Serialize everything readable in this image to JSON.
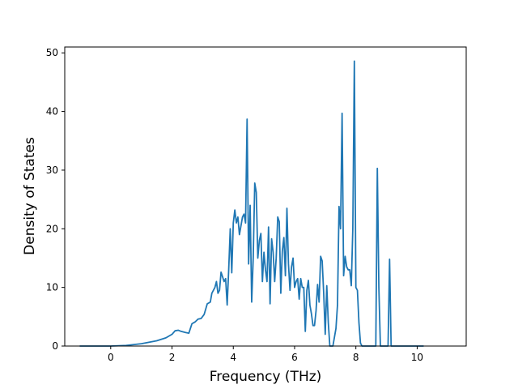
{
  "chart_data": {
    "type": "line",
    "title": "",
    "xlabel": "Frequency (THz)",
    "ylabel": "Density of States",
    "xlim": [
      -1.5,
      11.6
    ],
    "ylim": [
      0,
      51
    ],
    "x_ticks": [
      0,
      2,
      4,
      6,
      8,
      10
    ],
    "y_ticks": [
      0,
      10,
      20,
      30,
      40,
      50
    ],
    "grid": false,
    "series": [
      {
        "color": "#1f77b4",
        "points": [
          [
            -1.0,
            0.0
          ],
          [
            0.0,
            0.0
          ],
          [
            0.5,
            0.1
          ],
          [
            1.0,
            0.4
          ],
          [
            1.5,
            0.9
          ],
          [
            1.8,
            1.4
          ],
          [
            2.0,
            2.0
          ],
          [
            2.1,
            2.6
          ],
          [
            2.2,
            2.7
          ],
          [
            2.3,
            2.5
          ],
          [
            2.45,
            2.3
          ],
          [
            2.55,
            2.2
          ],
          [
            2.65,
            3.8
          ],
          [
            2.75,
            4.1
          ],
          [
            2.85,
            4.6
          ],
          [
            2.95,
            4.7
          ],
          [
            3.05,
            5.4
          ],
          [
            3.15,
            7.2
          ],
          [
            3.25,
            7.5
          ],
          [
            3.3,
            9.0
          ],
          [
            3.4,
            10.0
          ],
          [
            3.45,
            11.0
          ],
          [
            3.5,
            9.0
          ],
          [
            3.55,
            9.5
          ],
          [
            3.6,
            12.6
          ],
          [
            3.7,
            11.0
          ],
          [
            3.75,
            11.5
          ],
          [
            3.8,
            7.0
          ],
          [
            3.85,
            13.0
          ],
          [
            3.9,
            20.0
          ],
          [
            3.95,
            12.5
          ],
          [
            4.0,
            21.0
          ],
          [
            4.05,
            23.2
          ],
          [
            4.1,
            21.0
          ],
          [
            4.15,
            22.0
          ],
          [
            4.2,
            19.0
          ],
          [
            4.3,
            22.0
          ],
          [
            4.35,
            22.5
          ],
          [
            4.4,
            21.0
          ],
          [
            4.45,
            38.7
          ],
          [
            4.5,
            14.0
          ],
          [
            4.55,
            24.0
          ],
          [
            4.6,
            7.5
          ],
          [
            4.65,
            15.0
          ],
          [
            4.7,
            27.8
          ],
          [
            4.75,
            26.2
          ],
          [
            4.8,
            15.0
          ],
          [
            4.85,
            18.0
          ],
          [
            4.9,
            19.2
          ],
          [
            4.95,
            11.0
          ],
          [
            5.0,
            16.0
          ],
          [
            5.05,
            13.0
          ],
          [
            5.1,
            11.0
          ],
          [
            5.15,
            20.3
          ],
          [
            5.2,
            7.2
          ],
          [
            5.25,
            18.3
          ],
          [
            5.3,
            16.0
          ],
          [
            5.35,
            11.0
          ],
          [
            5.4,
            15.0
          ],
          [
            5.45,
            22.0
          ],
          [
            5.5,
            21.2
          ],
          [
            5.55,
            9.0
          ],
          [
            5.6,
            16.2
          ],
          [
            5.65,
            18.5
          ],
          [
            5.7,
            12.0
          ],
          [
            5.75,
            23.5
          ],
          [
            5.8,
            14.0
          ],
          [
            5.85,
            9.5
          ],
          [
            5.9,
            13.5
          ],
          [
            5.95,
            15.0
          ],
          [
            6.0,
            10.0
          ],
          [
            6.05,
            11.0
          ],
          [
            6.1,
            11.5
          ],
          [
            6.15,
            8.0
          ],
          [
            6.2,
            11.5
          ],
          [
            6.25,
            10.0
          ],
          [
            6.3,
            10.0
          ],
          [
            6.35,
            2.5
          ],
          [
            6.4,
            9.5
          ],
          [
            6.45,
            11.2
          ],
          [
            6.5,
            7.0
          ],
          [
            6.55,
            5.5
          ],
          [
            6.6,
            3.5
          ],
          [
            6.65,
            3.5
          ],
          [
            6.7,
            6.0
          ],
          [
            6.75,
            10.5
          ],
          [
            6.8,
            7.5
          ],
          [
            6.85,
            15.3
          ],
          [
            6.9,
            14.5
          ],
          [
            6.95,
            9.0
          ],
          [
            7.0,
            2.0
          ],
          [
            7.05,
            10.3
          ],
          [
            7.1,
            4.0
          ],
          [
            7.15,
            0.0
          ],
          [
            7.25,
            0.0
          ],
          [
            7.35,
            3.0
          ],
          [
            7.4,
            7.0
          ],
          [
            7.45,
            23.8
          ],
          [
            7.5,
            20.0
          ],
          [
            7.55,
            39.7
          ],
          [
            7.6,
            12.0
          ],
          [
            7.65,
            15.3
          ],
          [
            7.7,
            13.5
          ],
          [
            7.75,
            13.0
          ],
          [
            7.8,
            13.0
          ],
          [
            7.85,
            10.3
          ],
          [
            7.9,
            20.0
          ],
          [
            7.95,
            48.6
          ],
          [
            8.0,
            10.0
          ],
          [
            8.05,
            9.5
          ],
          [
            8.1,
            4.0
          ],
          [
            8.15,
            0.5
          ],
          [
            8.2,
            0.0
          ],
          [
            8.5,
            0.0
          ],
          [
            8.65,
            0.0
          ],
          [
            8.7,
            30.3
          ],
          [
            8.75,
            10.0
          ],
          [
            8.8,
            0.0
          ],
          [
            8.9,
            0.0
          ],
          [
            9.05,
            0.0
          ],
          [
            9.1,
            14.8
          ],
          [
            9.15,
            0.0
          ],
          [
            9.2,
            0.0
          ],
          [
            10.2,
            0.0
          ]
        ]
      }
    ]
  }
}
